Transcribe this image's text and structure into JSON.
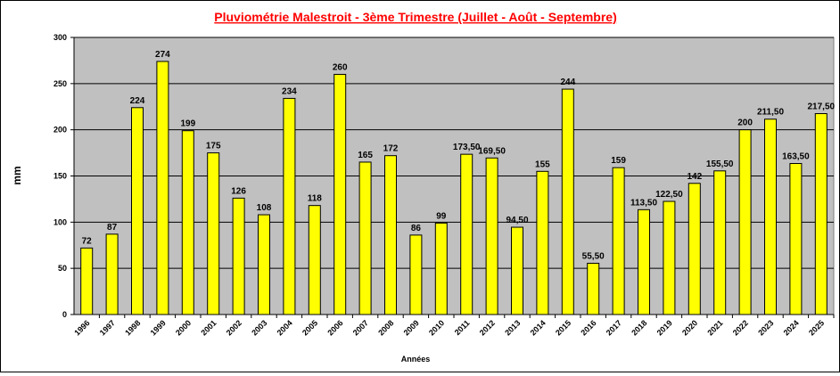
{
  "chart_data": {
    "type": "bar",
    "title": "Pluviométrie Malestroit - 3ème Trimestre (Juillet - Août - Septembre)",
    "xlabel": "Années",
    "ylabel": "mm",
    "ylim": [
      0,
      300
    ],
    "yticks": [
      0,
      50,
      100,
      150,
      200,
      250,
      300
    ],
    "grid": true,
    "categories": [
      "1996",
      "1997",
      "1998",
      "1999",
      "2000",
      "2001",
      "2002",
      "2003",
      "2004",
      "2005",
      "2006",
      "2007",
      "2008",
      "2009",
      "2010",
      "2011",
      "2012",
      "2013",
      "2014",
      "2015",
      "2016",
      "2017",
      "2018",
      "2019",
      "2020",
      "2021",
      "2022",
      "2023",
      "2024",
      "2025"
    ],
    "values": [
      72,
      87,
      224,
      274,
      199,
      175,
      126,
      108,
      234,
      118,
      260,
      165,
      172,
      86,
      99,
      173.5,
      169.5,
      94.5,
      155,
      244,
      55.5,
      159,
      113.5,
      122.5,
      142,
      155.5,
      200,
      211.5,
      163.5,
      217.5
    ],
    "labels": [
      "72",
      "87",
      "224",
      "274",
      "199",
      "175",
      "126",
      "108",
      "234",
      "118",
      "260",
      "165",
      "172",
      "86",
      "99",
      "173,50",
      "169,50",
      "94,50",
      "155",
      "244",
      "55,50",
      "159",
      "113,50",
      "122,50",
      "142",
      "155,50",
      "200",
      "211,50",
      "163,50",
      "217,50"
    ],
    "colors": {
      "bar": "#FFFF00",
      "plot_bg": "#C0C0C0",
      "title": "#FF0000"
    }
  }
}
